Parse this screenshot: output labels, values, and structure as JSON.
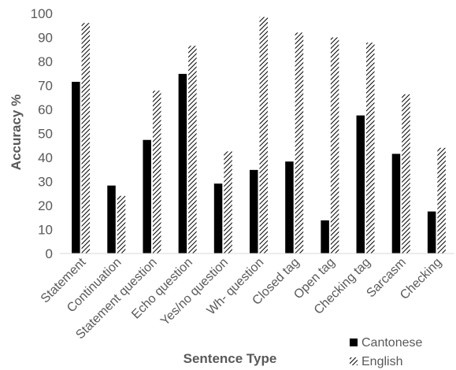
{
  "chart_data": {
    "type": "bar",
    "title": "",
    "xlabel": "Sentence Type",
    "ylabel": "Accuracy %",
    "ylim": [
      0,
      100
    ],
    "yticks": [
      0,
      10,
      20,
      30,
      40,
      50,
      60,
      70,
      80,
      90,
      100
    ],
    "grid": false,
    "legend_position": "bottom-right",
    "categories": [
      "Statement",
      "Continuation",
      "Statement question",
      "Echo question",
      "Yes/no question",
      "Wh- question",
      "Closed tag",
      "Open tag",
      "Checking tag",
      "Sarcasm",
      "Checking"
    ],
    "series": [
      {
        "name": "Cantonese",
        "pattern": "solid",
        "color": "#000000",
        "values": [
          71.5,
          28.3,
          47.3,
          74.8,
          29.1,
          34.8,
          38.3,
          13.8,
          57.5,
          41.5,
          17.5
        ]
      },
      {
        "name": "English",
        "pattern": "diagonal-hatch",
        "color": "#000000",
        "values": [
          96,
          24,
          67.8,
          86.5,
          42.5,
          98.5,
          92,
          90,
          87.8,
          66.3,
          44
        ]
      }
    ]
  }
}
